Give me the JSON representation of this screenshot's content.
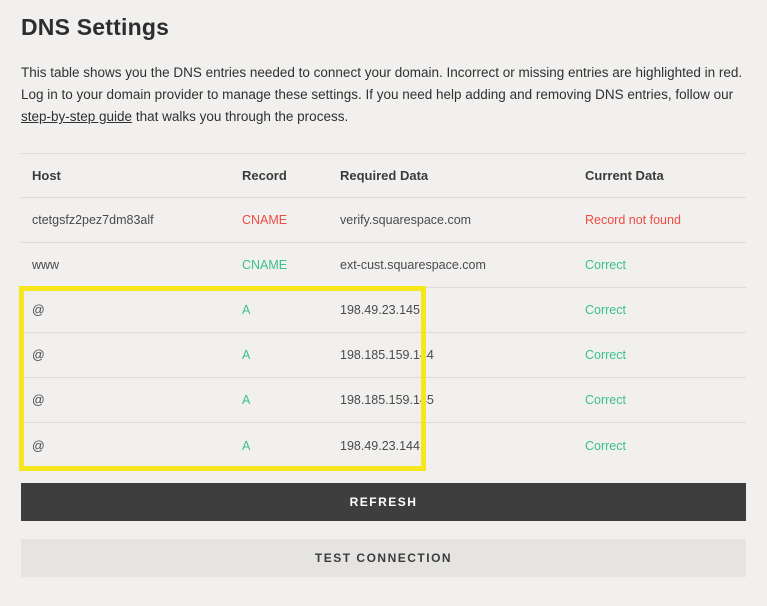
{
  "page": {
    "title": "DNS Settings",
    "description_before_link": "This table shows you the DNS entries needed to connect your domain. Incorrect or missing entries are highlighted in red. Log in to your domain provider to manage these settings. If you need help adding and removing DNS entries, follow our ",
    "link_text": "step-by-step guide",
    "description_after_link": " that walks you through the process."
  },
  "table": {
    "headers": [
      "Host",
      "Record",
      "Required Data",
      "Current Data"
    ],
    "rows": [
      {
        "host": "ctetgsfz2pez7dm83alf",
        "record": "CNAME",
        "record_status": "error",
        "required_data": "verify.squarespace.com",
        "current_data": "Record not found",
        "current_status": "error",
        "highlighted": false
      },
      {
        "host": "www",
        "record": "CNAME",
        "record_status": "ok",
        "required_data": "ext-cust.squarespace.com",
        "current_data": "Correct",
        "current_status": "ok",
        "highlighted": false
      },
      {
        "host": "@",
        "record": "A",
        "record_status": "ok",
        "required_data": "198.49.23.145",
        "current_data": "Correct",
        "current_status": "ok",
        "highlighted": true
      },
      {
        "host": "@",
        "record": "A",
        "record_status": "ok",
        "required_data": "198.185.159.144",
        "current_data": "Correct",
        "current_status": "ok",
        "highlighted": true
      },
      {
        "host": "@",
        "record": "A",
        "record_status": "ok",
        "required_data": "198.185.159.145",
        "current_data": "Correct",
        "current_status": "ok",
        "highlighted": true
      },
      {
        "host": "@",
        "record": "A",
        "record_status": "ok",
        "required_data": "198.49.23.144",
        "current_data": "Correct",
        "current_status": "ok",
        "highlighted": true
      }
    ]
  },
  "buttons": {
    "refresh": "REFRESH",
    "test_connection": "TEST CONNECTION"
  },
  "colors": {
    "error": "#ee4c3f",
    "ok": "#3bc18a",
    "highlight": "#f6e71c",
    "refresh_button_bg": "#3e3e3e",
    "refresh_button_text": "#ffffff",
    "test_button_bg": "#e5e4e2",
    "test_button_text": "#3c3c3c",
    "background": "#f1f0ef"
  }
}
